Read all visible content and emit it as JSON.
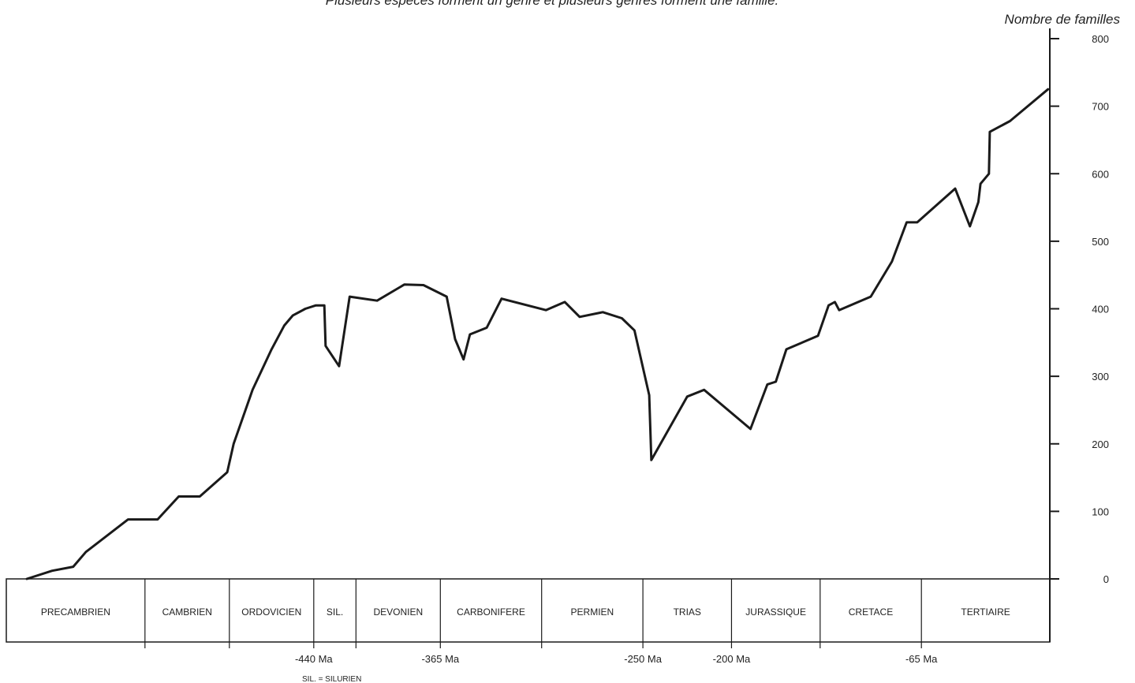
{
  "caption": "Plusieurs espèces forment un genre et plusieurs genres forment une famille.",
  "chart_data": {
    "type": "line",
    "title": "",
    "ylabel": "Nombre de familles",
    "ylim": [
      0,
      800
    ],
    "yticks": [
      0,
      100,
      200,
      300,
      400,
      500,
      600,
      700,
      800
    ],
    "grid": false,
    "series": [
      {
        "values": [
          [
            0.0,
            0
          ],
          [
            0.6,
            12
          ],
          [
            1.1,
            18
          ],
          [
            1.4,
            40
          ],
          [
            2.4,
            88
          ],
          [
            3.1,
            88
          ],
          [
            3.6,
            122
          ],
          [
            4.1,
            122
          ],
          [
            4.75,
            158
          ],
          [
            4.9,
            200
          ],
          [
            5.35,
            280
          ],
          [
            5.8,
            340
          ],
          [
            6.1,
            375
          ],
          [
            6.3,
            390
          ],
          [
            6.6,
            400
          ],
          [
            6.85,
            405
          ],
          [
            7.05,
            405
          ],
          [
            7.08,
            345
          ],
          [
            7.4,
            315
          ],
          [
            7.65,
            418
          ],
          [
            8.3,
            412
          ],
          [
            8.95,
            436
          ],
          [
            9.4,
            435
          ],
          [
            9.95,
            418
          ],
          [
            10.15,
            355
          ],
          [
            10.35,
            325
          ],
          [
            10.5,
            362
          ],
          [
            10.9,
            372
          ],
          [
            11.25,
            415
          ],
          [
            12.3,
            398
          ],
          [
            12.75,
            410
          ],
          [
            13.1,
            388
          ],
          [
            13.65,
            395
          ],
          [
            14.1,
            386
          ],
          [
            14.4,
            368
          ],
          [
            14.75,
            272
          ],
          [
            14.8,
            176
          ],
          [
            15.65,
            270
          ],
          [
            16.05,
            280
          ],
          [
            17.15,
            222
          ],
          [
            17.55,
            288
          ],
          [
            17.75,
            292
          ],
          [
            18.0,
            340
          ],
          [
            18.75,
            360
          ],
          [
            19.0,
            405
          ],
          [
            19.15,
            410
          ],
          [
            19.25,
            398
          ],
          [
            20.0,
            418
          ],
          [
            20.5,
            470
          ],
          [
            20.85,
            528
          ],
          [
            21.1,
            528
          ],
          [
            22.0,
            578
          ],
          [
            22.35,
            522
          ],
          [
            22.55,
            558
          ],
          [
            22.6,
            585
          ],
          [
            22.8,
            600
          ],
          [
            22.82,
            662
          ],
          [
            23.3,
            678
          ],
          [
            24.2,
            725
          ]
        ]
      }
    ],
    "periods": [
      "PRECAMBRIEN",
      "CAMBRIEN",
      "ORDOVICIEN",
      "SIL.",
      "DEVONIEN",
      "CARBONIFERE",
      "PERMIEN",
      "TRIAS",
      "JURASSIQUE",
      "CRETACE",
      "TERTIAIRE"
    ],
    "period_bounds": [
      0,
      2.8,
      4.8,
      6.8,
      7.8,
      9.8,
      12.2,
      14.6,
      16.7,
      18.8,
      21.2,
      23.6
    ],
    "x_axis_labels": [
      "-440 Ma",
      "-365 Ma",
      "-250 Ma",
      "-200 Ma",
      "-65 Ma"
    ],
    "x_axis_label_positions": [
      6.8,
      9.8,
      14.6,
      16.7,
      21.2
    ],
    "note": "SIL. = SILURIEN",
    "line_color": "#1a1a1a"
  }
}
